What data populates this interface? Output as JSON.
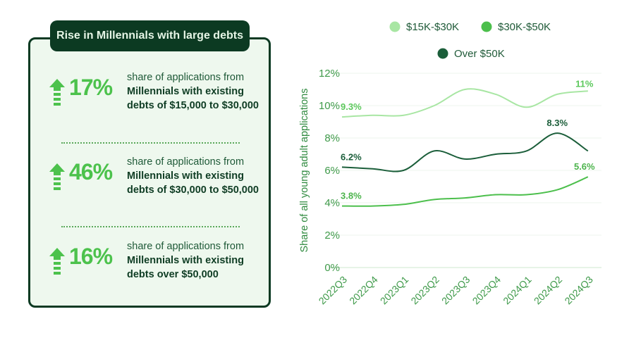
{
  "card": {
    "title": "Rise in Millennials with large debts",
    "stats": [
      {
        "value": "17%",
        "line1": "share of applications from",
        "bold": "Millennials with existing debts of $15,000 to $30,000"
      },
      {
        "value": "46%",
        "line1": "share of applications from",
        "bold": "Millennials with existing debts of $30,000 to $50,000"
      },
      {
        "value": "16%",
        "line1": "share of applications from",
        "bold": "Millennials with existing debts over $50,000"
      }
    ],
    "icon": "arrow-up-icon",
    "accent": "#4cc24c"
  },
  "chart_data": {
    "type": "line",
    "ylabel": "Share of all young adult applications",
    "categories": [
      "2022Q3",
      "2022Q4",
      "2023Q1",
      "2023Q2",
      "2023Q3",
      "2023Q4",
      "2024Q1",
      "2024Q2",
      "2024Q3"
    ],
    "ylim": [
      0,
      12
    ],
    "yticks": [
      "0%",
      "2%",
      "4%",
      "6%",
      "8%",
      "10%",
      "12%"
    ],
    "grid": true,
    "legend_position": "top",
    "series": [
      {
        "name": "$15K-$30K",
        "color": "#a8e6a3",
        "values": [
          9.3,
          9.4,
          9.4,
          10.0,
          11.0,
          10.7,
          9.9,
          10.7,
          10.9
        ],
        "labels": {
          "0": "9.3%",
          "8": "11%"
        }
      },
      {
        "name": "$30K-$50K",
        "color": "#4cbf4c",
        "values": [
          3.8,
          3.8,
          3.9,
          4.2,
          4.3,
          4.5,
          4.5,
          4.8,
          5.6
        ],
        "labels": {
          "0": "3.8%",
          "8": "5.6%"
        }
      },
      {
        "name": "Over $50K",
        "color": "#1b5e3a",
        "values": [
          6.2,
          6.1,
          6.0,
          7.2,
          6.7,
          7.0,
          7.2,
          8.3,
          7.2
        ],
        "labels": {
          "0": "6.2%",
          "7": "8.3%"
        }
      }
    ]
  }
}
